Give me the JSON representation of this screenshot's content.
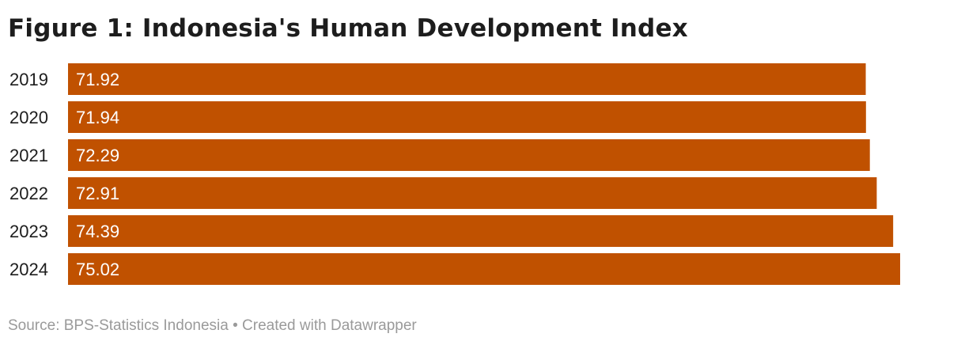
{
  "title": "Figure 1: Indonesia's Human Development Index",
  "footer": {
    "source": "Source: BPS-Statistics Indonesia",
    "separator": "•",
    "credit": "Created with Datawrapper"
  },
  "colors": {
    "bar": "#c05100",
    "bar_label": "#ffffff",
    "category_label": "#1d1d1d",
    "footer_text": "#9a9a9a"
  },
  "chart_data": {
    "type": "bar",
    "orientation": "horizontal",
    "categories": [
      "2019",
      "2020",
      "2021",
      "2022",
      "2023",
      "2024"
    ],
    "values": [
      71.92,
      71.94,
      72.29,
      72.91,
      74.39,
      75.02
    ],
    "value_labels": [
      "71.92",
      "71.94",
      "72.29",
      "72.91",
      "74.39",
      "75.02"
    ],
    "title": "Figure 1: Indonesia's Human Development Index",
    "xlabel": "",
    "ylabel": "",
    "xlim": [
      0,
      75.02
    ],
    "grid": false,
    "legend": false
  }
}
